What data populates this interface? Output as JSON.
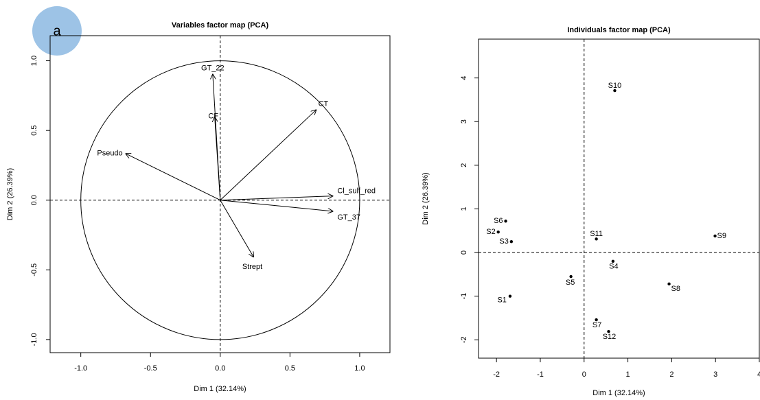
{
  "badge": "a",
  "chart_data": [
    {
      "type": "vectors",
      "title": "Variables factor map (PCA)",
      "x_label": "Dim 1 (32.14%)",
      "y_label": "Dim 2 (26.39%)",
      "labels": [
        "GT_22",
        "CF",
        "CT",
        "Pseudo",
        "Cl_sulf_red",
        "GT_37",
        "Strept"
      ],
      "x": [
        -0.054,
        -0.04,
        0.69,
        -0.68,
        0.81,
        0.81,
        0.24
      ],
      "values": [
        0.906,
        0.6,
        0.65,
        0.335,
        0.03,
        -0.08,
        -0.41
      ],
      "circle_radius": 1,
      "xlim": [
        -1.22,
        1.217
      ],
      "ylim": [
        -1.094,
        1.18
      ],
      "xticks": [
        {
          "value": -1,
          "label": "-1.0"
        },
        {
          "value": -0.5,
          "label": "-0.5"
        },
        {
          "value": 0,
          "label": "0.0"
        },
        {
          "value": 0.5,
          "label": "0.5"
        },
        {
          "value": 1,
          "label": "1.0"
        }
      ],
      "yticks": [
        {
          "value": -1,
          "label": "-1.0"
        },
        {
          "value": -0.5,
          "label": "-0.5"
        },
        {
          "value": 0,
          "label": "0.0"
        },
        {
          "value": 0.5,
          "label": "0.5"
        },
        {
          "value": 1,
          "label": "1.0"
        }
      ],
      "color": "#000000"
    },
    {
      "type": "scatter",
      "title": "Individuals factor map (PCA)",
      "x_label": "Dim 1 (32.14%)",
      "y_label": "Dim 2 (26.39%)",
      "labels": [
        "S1",
        "S2",
        "S3",
        "S4",
        "S5",
        "S6",
        "S7",
        "S8",
        "S9",
        "S10",
        "S11",
        "S12"
      ],
      "x": [
        -1.69,
        -1.96,
        -1.66,
        0.66,
        -0.3,
        -1.79,
        0.28,
        1.94,
        2.99,
        0.7,
        0.28,
        0.56
      ],
      "values": [
        -1.0,
        0.47,
        0.25,
        -0.2,
        -0.55,
        0.72,
        -1.54,
        -0.72,
        0.38,
        3.71,
        0.31,
        -1.81
      ],
      "xlim": [
        -2.41,
        4.0
      ],
      "ylim": [
        -2.42,
        4.89
      ],
      "xticks": [
        -2,
        -1,
        0,
        1,
        2,
        3,
        4
      ],
      "yticks": [
        -2,
        -1,
        0,
        1,
        2,
        3,
        4
      ],
      "color": "#000000"
    }
  ]
}
